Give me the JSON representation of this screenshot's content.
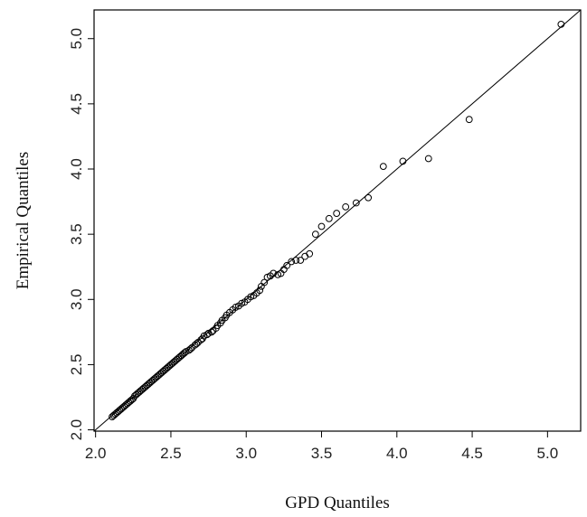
{
  "chart_data": {
    "type": "scatter",
    "title": "",
    "xlabel": "GPD Quantiles",
    "ylabel": "Empirical  Quantiles",
    "xlim": [
      1.99,
      5.22
    ],
    "ylim": [
      1.99,
      5.22
    ],
    "xticks": [
      2.0,
      2.5,
      3.0,
      3.5,
      4.0,
      4.5,
      5.0
    ],
    "xtick_labels": [
      "2.0",
      "2.5",
      "3.0",
      "3.5",
      "4.0",
      "4.5",
      "5.0"
    ],
    "yticks": [
      2.0,
      2.5,
      3.0,
      3.5,
      4.0,
      4.5,
      5.0
    ],
    "ytick_labels": [
      "2.0",
      "2.5",
      "3.0",
      "3.5",
      "4.0",
      "4.5",
      "5.0"
    ],
    "grid": false,
    "marker": "open-circle",
    "reference_line": {
      "from": [
        1.99,
        1.99
      ],
      "to": [
        5.22,
        5.22
      ]
    },
    "points": [
      [
        2.11,
        2.1
      ],
      [
        2.12,
        2.11
      ],
      [
        2.13,
        2.12
      ],
      [
        2.14,
        2.13
      ],
      [
        2.15,
        2.14
      ],
      [
        2.16,
        2.15
      ],
      [
        2.17,
        2.16
      ],
      [
        2.18,
        2.17
      ],
      [
        2.19,
        2.18
      ],
      [
        2.2,
        2.19
      ],
      [
        2.21,
        2.2
      ],
      [
        2.22,
        2.21
      ],
      [
        2.23,
        2.22
      ],
      [
        2.24,
        2.23
      ],
      [
        2.25,
        2.24
      ],
      [
        2.26,
        2.26
      ],
      [
        2.27,
        2.27
      ],
      [
        2.28,
        2.28
      ],
      [
        2.29,
        2.29
      ],
      [
        2.3,
        2.3
      ],
      [
        2.31,
        2.31
      ],
      [
        2.32,
        2.32
      ],
      [
        2.33,
        2.33
      ],
      [
        2.34,
        2.34
      ],
      [
        2.35,
        2.35
      ],
      [
        2.36,
        2.36
      ],
      [
        2.37,
        2.37
      ],
      [
        2.38,
        2.38
      ],
      [
        2.39,
        2.39
      ],
      [
        2.4,
        2.4
      ],
      [
        2.41,
        2.41
      ],
      [
        2.42,
        2.42
      ],
      [
        2.43,
        2.43
      ],
      [
        2.44,
        2.44
      ],
      [
        2.45,
        2.45
      ],
      [
        2.46,
        2.46
      ],
      [
        2.47,
        2.47
      ],
      [
        2.48,
        2.48
      ],
      [
        2.49,
        2.49
      ],
      [
        2.5,
        2.5
      ],
      [
        2.51,
        2.51
      ],
      [
        2.52,
        2.52
      ],
      [
        2.53,
        2.53
      ],
      [
        2.54,
        2.54
      ],
      [
        2.55,
        2.55
      ],
      [
        2.56,
        2.56
      ],
      [
        2.57,
        2.57
      ],
      [
        2.58,
        2.58
      ],
      [
        2.59,
        2.59
      ],
      [
        2.6,
        2.6
      ],
      [
        2.62,
        2.61
      ],
      [
        2.63,
        2.62
      ],
      [
        2.64,
        2.63
      ],
      [
        2.66,
        2.65
      ],
      [
        2.67,
        2.66
      ],
      [
        2.68,
        2.67
      ],
      [
        2.7,
        2.69
      ],
      [
        2.71,
        2.7
      ],
      [
        2.72,
        2.72
      ],
      [
        2.74,
        2.73
      ],
      [
        2.75,
        2.74
      ],
      [
        2.77,
        2.75
      ],
      [
        2.78,
        2.76
      ],
      [
        2.8,
        2.78
      ],
      [
        2.81,
        2.8
      ],
      [
        2.83,
        2.82
      ],
      [
        2.84,
        2.84
      ],
      [
        2.86,
        2.86
      ],
      [
        2.87,
        2.88
      ],
      [
        2.89,
        2.9
      ],
      [
        2.91,
        2.92
      ],
      [
        2.93,
        2.94
      ],
      [
        2.95,
        2.95
      ],
      [
        2.97,
        2.97
      ],
      [
        2.99,
        2.98
      ],
      [
        3.01,
        3.0
      ],
      [
        3.03,
        3.02
      ],
      [
        3.05,
        3.03
      ],
      [
        3.07,
        3.05
      ],
      [
        3.09,
        3.07
      ],
      [
        3.1,
        3.1
      ],
      [
        3.12,
        3.13
      ],
      [
        3.14,
        3.17
      ],
      [
        3.16,
        3.18
      ],
      [
        3.18,
        3.2
      ],
      [
        3.21,
        3.19
      ],
      [
        3.23,
        3.2
      ],
      [
        3.25,
        3.23
      ],
      [
        3.27,
        3.26
      ],
      [
        3.3,
        3.29
      ],
      [
        3.33,
        3.3
      ],
      [
        3.36,
        3.3
      ],
      [
        3.39,
        3.33
      ],
      [
        3.42,
        3.35
      ],
      [
        3.46,
        3.5
      ],
      [
        3.5,
        3.56
      ],
      [
        3.55,
        3.62
      ],
      [
        3.6,
        3.66
      ],
      [
        3.66,
        3.71
      ],
      [
        3.73,
        3.74
      ],
      [
        3.81,
        3.78
      ],
      [
        3.91,
        4.02
      ],
      [
        4.04,
        4.06
      ],
      [
        4.21,
        4.08
      ],
      [
        4.48,
        4.38
      ],
      [
        5.09,
        5.11
      ]
    ]
  }
}
